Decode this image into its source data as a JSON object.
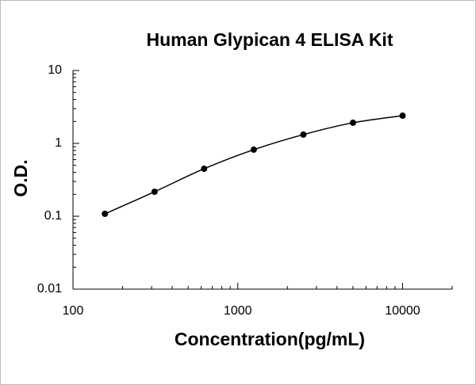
{
  "chart_data": {
    "type": "scatter",
    "title": "Human Glypican 4 ELISA Kit",
    "x_label": "Concentration(pg/mL)",
    "y_label": "O.D.",
    "x": [
      156.25,
      312.5,
      625,
      1250,
      2500,
      5000,
      10000
    ],
    "series": [
      {
        "color": "#000000",
        "values": [
          0.108,
          0.217,
          0.449,
          0.82,
          1.32,
          1.92,
          2.4
        ]
      }
    ],
    "xlim": [
      100,
      20000
    ],
    "ylim": [
      0.01,
      10
    ],
    "xticks": [
      100,
      1000,
      10000
    ],
    "yticks": [
      0.01,
      0.1,
      1,
      10
    ],
    "xlog": true,
    "ylog": true,
    "smooth_line": true
  }
}
